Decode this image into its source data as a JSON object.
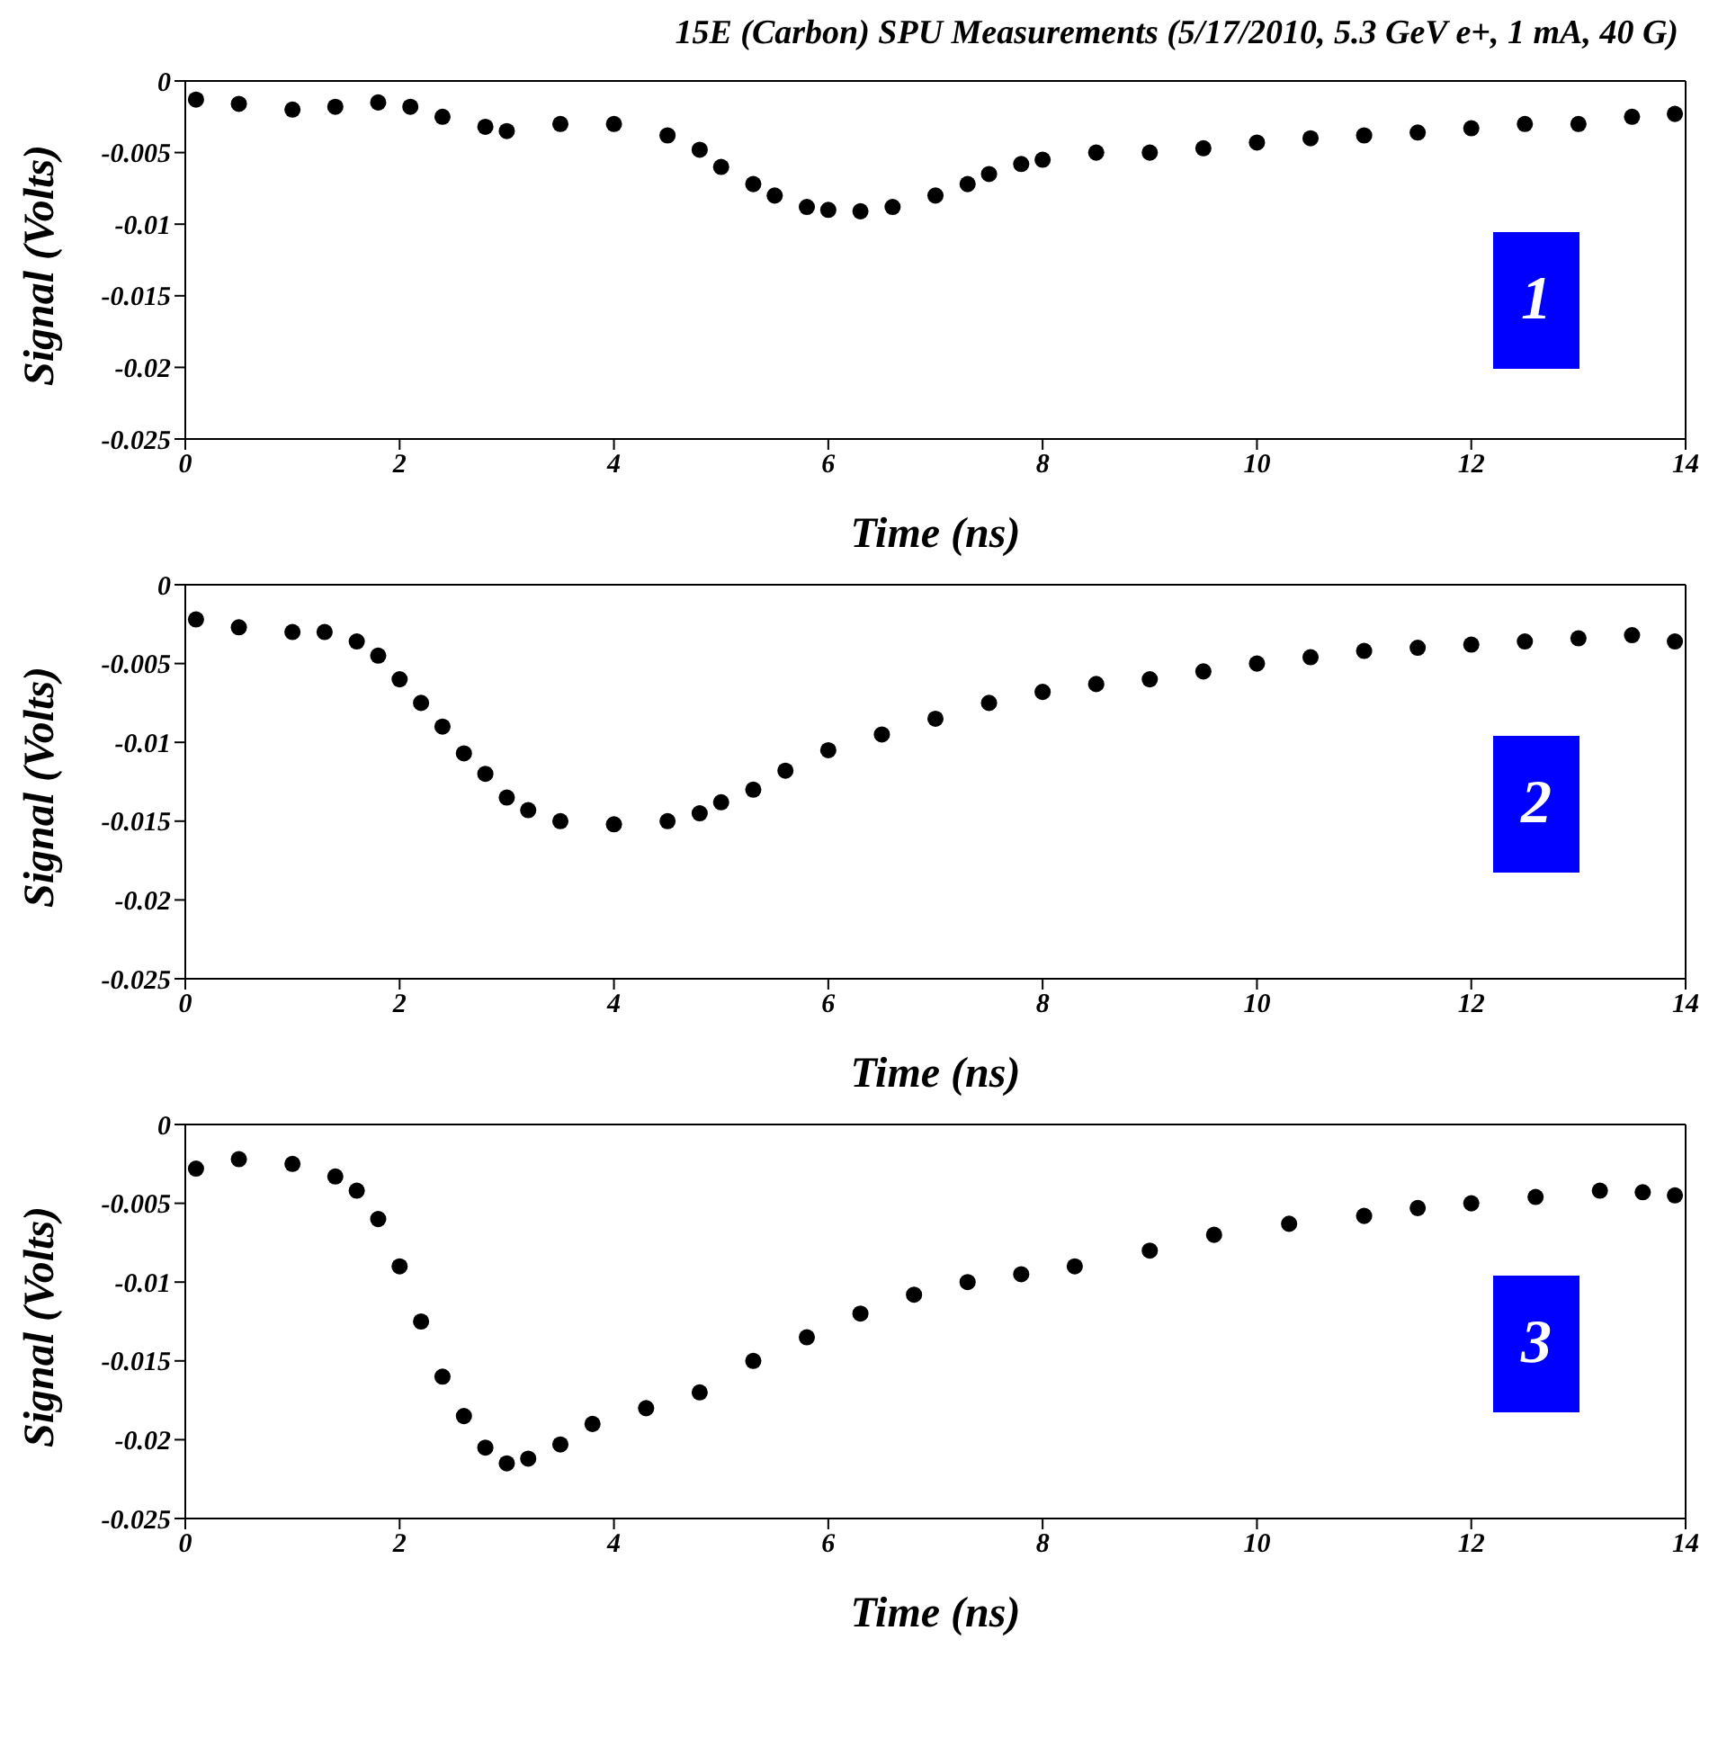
{
  "chart_data": [
    {
      "type": "scatter",
      "title": "15E (Carbon) SPU Measurements (5/17/2010, 5.3 GeV e+, 1 mA, 40 G)",
      "xlabel": "Time (ns)",
      "ylabel": "Signal (Volts)",
      "xlim": [
        0,
        14
      ],
      "xticks": [
        0,
        2,
        4,
        6,
        8,
        10,
        12,
        14
      ],
      "ylim": [
        -0.025,
        0
      ],
      "yticks": [
        -0.025,
        -0.02,
        -0.015,
        -0.01,
        -0.005,
        0
      ],
      "marker": "circle",
      "annotations": [
        "1"
      ],
      "x": [
        0.1,
        0.5,
        1,
        1.4,
        1.8,
        2.1,
        2.4,
        2.8,
        3,
        3.5,
        4,
        4.5,
        4.8,
        5,
        5.3,
        5.5,
        5.8,
        6,
        6.3,
        6.6,
        7,
        7.3,
        7.5,
        7.8,
        8,
        8.5,
        9,
        9.5,
        10,
        10.5,
        11,
        11.5,
        12,
        12.5,
        13,
        13.5,
        13.9
      ],
      "series": [
        {
          "color": "#000000",
          "values": [
            -0.0013,
            -0.0016,
            -0.002,
            -0.0018,
            -0.0015,
            -0.0018,
            -0.0025,
            -0.0032,
            -0.0035,
            -0.003,
            -0.003,
            -0.0038,
            -0.0048,
            -0.006,
            -0.0072,
            -0.008,
            -0.0088,
            -0.009,
            -0.0091,
            -0.0088,
            -0.008,
            -0.0072,
            -0.0065,
            -0.0058,
            -0.0055,
            -0.005,
            -0.005,
            -0.0047,
            -0.0043,
            -0.004,
            -0.0038,
            -0.0036,
            -0.0033,
            -0.003,
            -0.003,
            -0.0025,
            -0.0023
          ]
        }
      ]
    },
    {
      "type": "scatter",
      "xlabel": "Time (ns)",
      "ylabel": "Signal (Volts)",
      "xlim": [
        0,
        14
      ],
      "xticks": [
        0,
        2,
        4,
        6,
        8,
        10,
        12,
        14
      ],
      "ylim": [
        -0.025,
        0
      ],
      "yticks": [
        -0.025,
        -0.02,
        -0.015,
        -0.01,
        -0.005,
        0
      ],
      "marker": "circle",
      "annotations": [
        "2"
      ],
      "x": [
        0.1,
        0.5,
        1,
        1.3,
        1.6,
        1.8,
        2,
        2.2,
        2.4,
        2.6,
        2.8,
        3,
        3.2,
        3.5,
        4,
        4.5,
        4.8,
        5,
        5.3,
        5.6,
        6,
        6.5,
        7,
        7.5,
        8,
        8.5,
        9,
        9.5,
        10,
        10.5,
        11,
        11.5,
        12,
        12.5,
        13,
        13.5,
        13.9
      ],
      "series": [
        {
          "color": "#000000",
          "values": [
            -0.0022,
            -0.0027,
            -0.003,
            -0.003,
            -0.0036,
            -0.0045,
            -0.006,
            -0.0075,
            -0.009,
            -0.0107,
            -0.012,
            -0.0135,
            -0.0143,
            -0.015,
            -0.0152,
            -0.015,
            -0.0145,
            -0.0138,
            -0.013,
            -0.0118,
            -0.0105,
            -0.0095,
            -0.0085,
            -0.0075,
            -0.0068,
            -0.0063,
            -0.006,
            -0.0055,
            -0.005,
            -0.0046,
            -0.0042,
            -0.004,
            -0.0038,
            -0.0036,
            -0.0034,
            -0.0032,
            -0.0036
          ]
        }
      ]
    },
    {
      "type": "scatter",
      "xlabel": "Time (ns)",
      "ylabel": "Signal (Volts)",
      "xlim": [
        0,
        14
      ],
      "xticks": [
        0,
        2,
        4,
        6,
        8,
        10,
        12,
        14
      ],
      "ylim": [
        -0.025,
        0
      ],
      "yticks": [
        -0.025,
        -0.02,
        -0.015,
        -0.01,
        -0.005,
        0
      ],
      "marker": "circle",
      "annotations": [
        "3"
      ],
      "x": [
        0.1,
        0.5,
        1,
        1.4,
        1.6,
        1.8,
        2,
        2.2,
        2.4,
        2.6,
        2.8,
        3,
        3.2,
        3.5,
        3.8,
        4.3,
        4.8,
        5.3,
        5.8,
        6.3,
        6.8,
        7.3,
        7.8,
        8.3,
        9,
        9.6,
        10.3,
        11,
        11.5,
        12,
        12.6,
        13.2,
        13.6,
        13.9
      ],
      "series": [
        {
          "color": "#000000",
          "values": [
            -0.0028,
            -0.0022,
            -0.0025,
            -0.0033,
            -0.0042,
            -0.006,
            -0.009,
            -0.0125,
            -0.016,
            -0.0185,
            -0.0205,
            -0.0215,
            -0.0212,
            -0.0203,
            -0.019,
            -0.018,
            -0.017,
            -0.015,
            -0.0135,
            -0.012,
            -0.0108,
            -0.01,
            -0.0095,
            -0.009,
            -0.008,
            -0.007,
            -0.0063,
            -0.0058,
            -0.0053,
            -0.005,
            -0.0046,
            -0.0042,
            -0.0043,
            -0.0045
          ]
        }
      ]
    }
  ]
}
